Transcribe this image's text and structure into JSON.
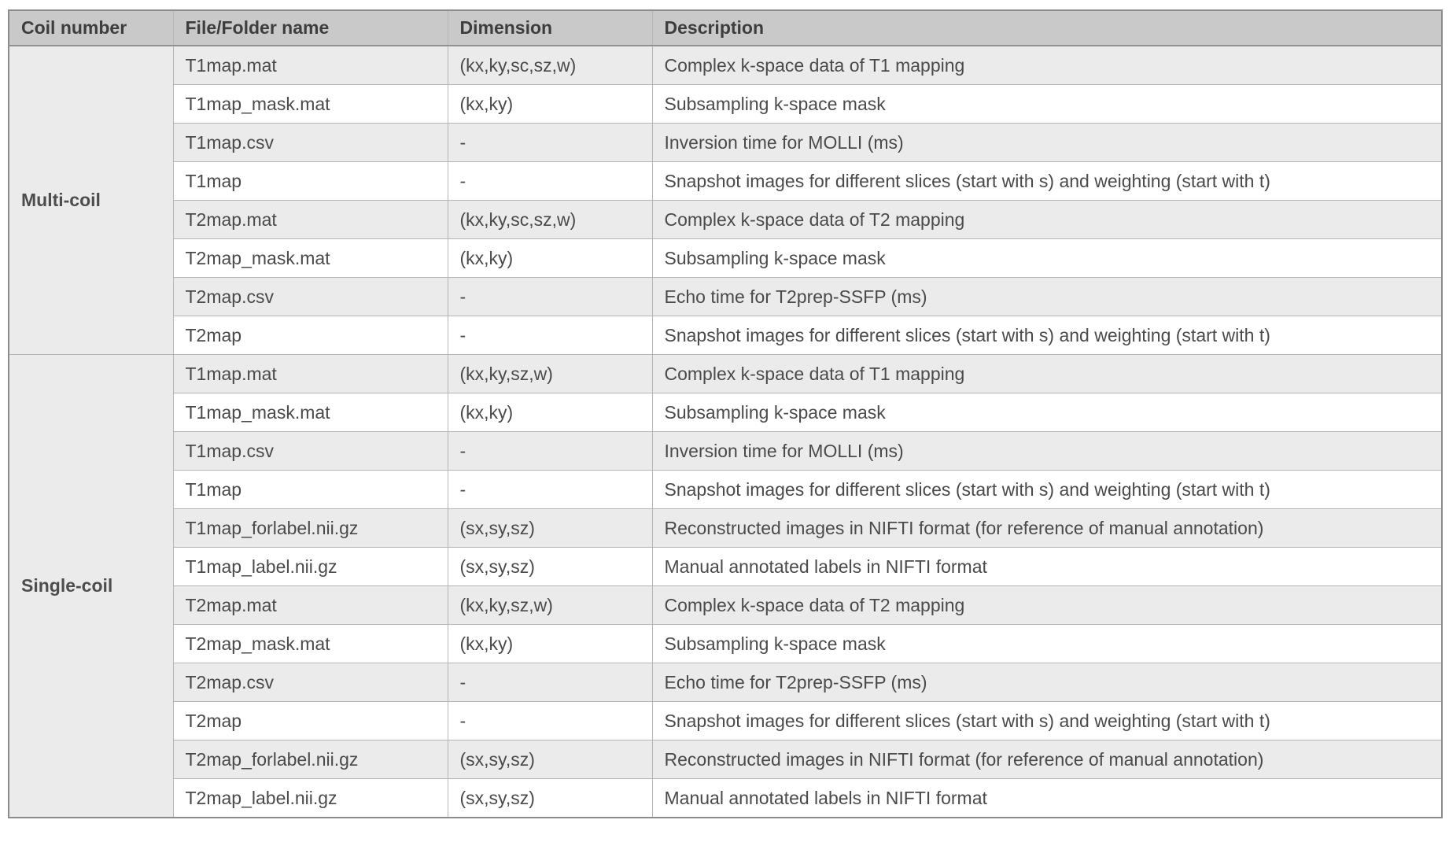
{
  "colors": {
    "header_bg": "#c9c9c9",
    "header_text": "#3d3d3d",
    "stripe_row_bg": "#ebebeb",
    "plain_row_bg": "#ffffff",
    "body_text": "#4a4a4a",
    "outer_border": "#8c8c8c",
    "inner_border": "#b5b5b5"
  },
  "table": {
    "headers": [
      "Coil number",
      "File/Folder name",
      "Dimension",
      "Description"
    ],
    "groups": [
      {
        "coil": "Multi-coil",
        "rows": [
          {
            "file": "T1map.mat",
            "dim": "(kx,ky,sc,sz,w)",
            "desc": "Complex k-space data of T1 mapping"
          },
          {
            "file": "T1map_mask.mat",
            "dim": "(kx,ky)",
            "desc": "Subsampling k-space mask"
          },
          {
            "file": "T1map.csv",
            "dim": "-",
            "desc": "Inversion time for MOLLI (ms)"
          },
          {
            "file": "T1map",
            "dim": "-",
            "desc": "Snapshot images for different slices (start with s) and weighting (start with t)"
          },
          {
            "file": "T2map.mat",
            "dim": "(kx,ky,sc,sz,w)",
            "desc": "Complex k-space data of T2 mapping"
          },
          {
            "file": "T2map_mask.mat",
            "dim": "(kx,ky)",
            "desc": "Subsampling k-space mask"
          },
          {
            "file": "T2map.csv",
            "dim": "-",
            "desc": "Echo time for T2prep-SSFP (ms)"
          },
          {
            "file": "T2map",
            "dim": "-",
            "desc": "Snapshot images for different slices (start with s) and weighting (start with t)"
          }
        ]
      },
      {
        "coil": "Single-coil",
        "rows": [
          {
            "file": "T1map.mat",
            "dim": "(kx,ky,sz,w)",
            "desc": "Complex k-space data of T1 mapping"
          },
          {
            "file": "T1map_mask.mat",
            "dim": "(kx,ky)",
            "desc": "Subsampling k-space mask"
          },
          {
            "file": "T1map.csv",
            "dim": "-",
            "desc": "Inversion time for MOLLI (ms)"
          },
          {
            "file": "T1map",
            "dim": "-",
            "desc": "Snapshot images for different slices (start with s) and weighting (start with t)"
          },
          {
            "file": "T1map_forlabel.nii.gz",
            "dim": "(sx,sy,sz)",
            "desc": "Reconstructed images in NIFTI format (for reference of manual annotation)"
          },
          {
            "file": "T1map_label.nii.gz",
            "dim": "(sx,sy,sz)",
            "desc": "Manual annotated labels in NIFTI format"
          },
          {
            "file": "T2map.mat",
            "dim": "(kx,ky,sz,w)",
            "desc": "Complex k-space data of T2 mapping"
          },
          {
            "file": "T2map_mask.mat",
            "dim": "(kx,ky)",
            "desc": "Subsampling k-space mask"
          },
          {
            "file": "T2map.csv",
            "dim": "-",
            "desc": "Echo time for T2prep-SSFP (ms)"
          },
          {
            "file": "T2map",
            "dim": "-",
            "desc": "Snapshot images for different slices (start with s) and weighting (start with t)"
          },
          {
            "file": "T2map_forlabel.nii.gz",
            "dim": "(sx,sy,sz)",
            "desc": "Reconstructed images in NIFTI format (for reference of manual annotation)"
          },
          {
            "file": "T2map_label.nii.gz",
            "dim": "(sx,sy,sz)",
            "desc": "Manual annotated labels in NIFTI format"
          }
        ]
      }
    ]
  }
}
